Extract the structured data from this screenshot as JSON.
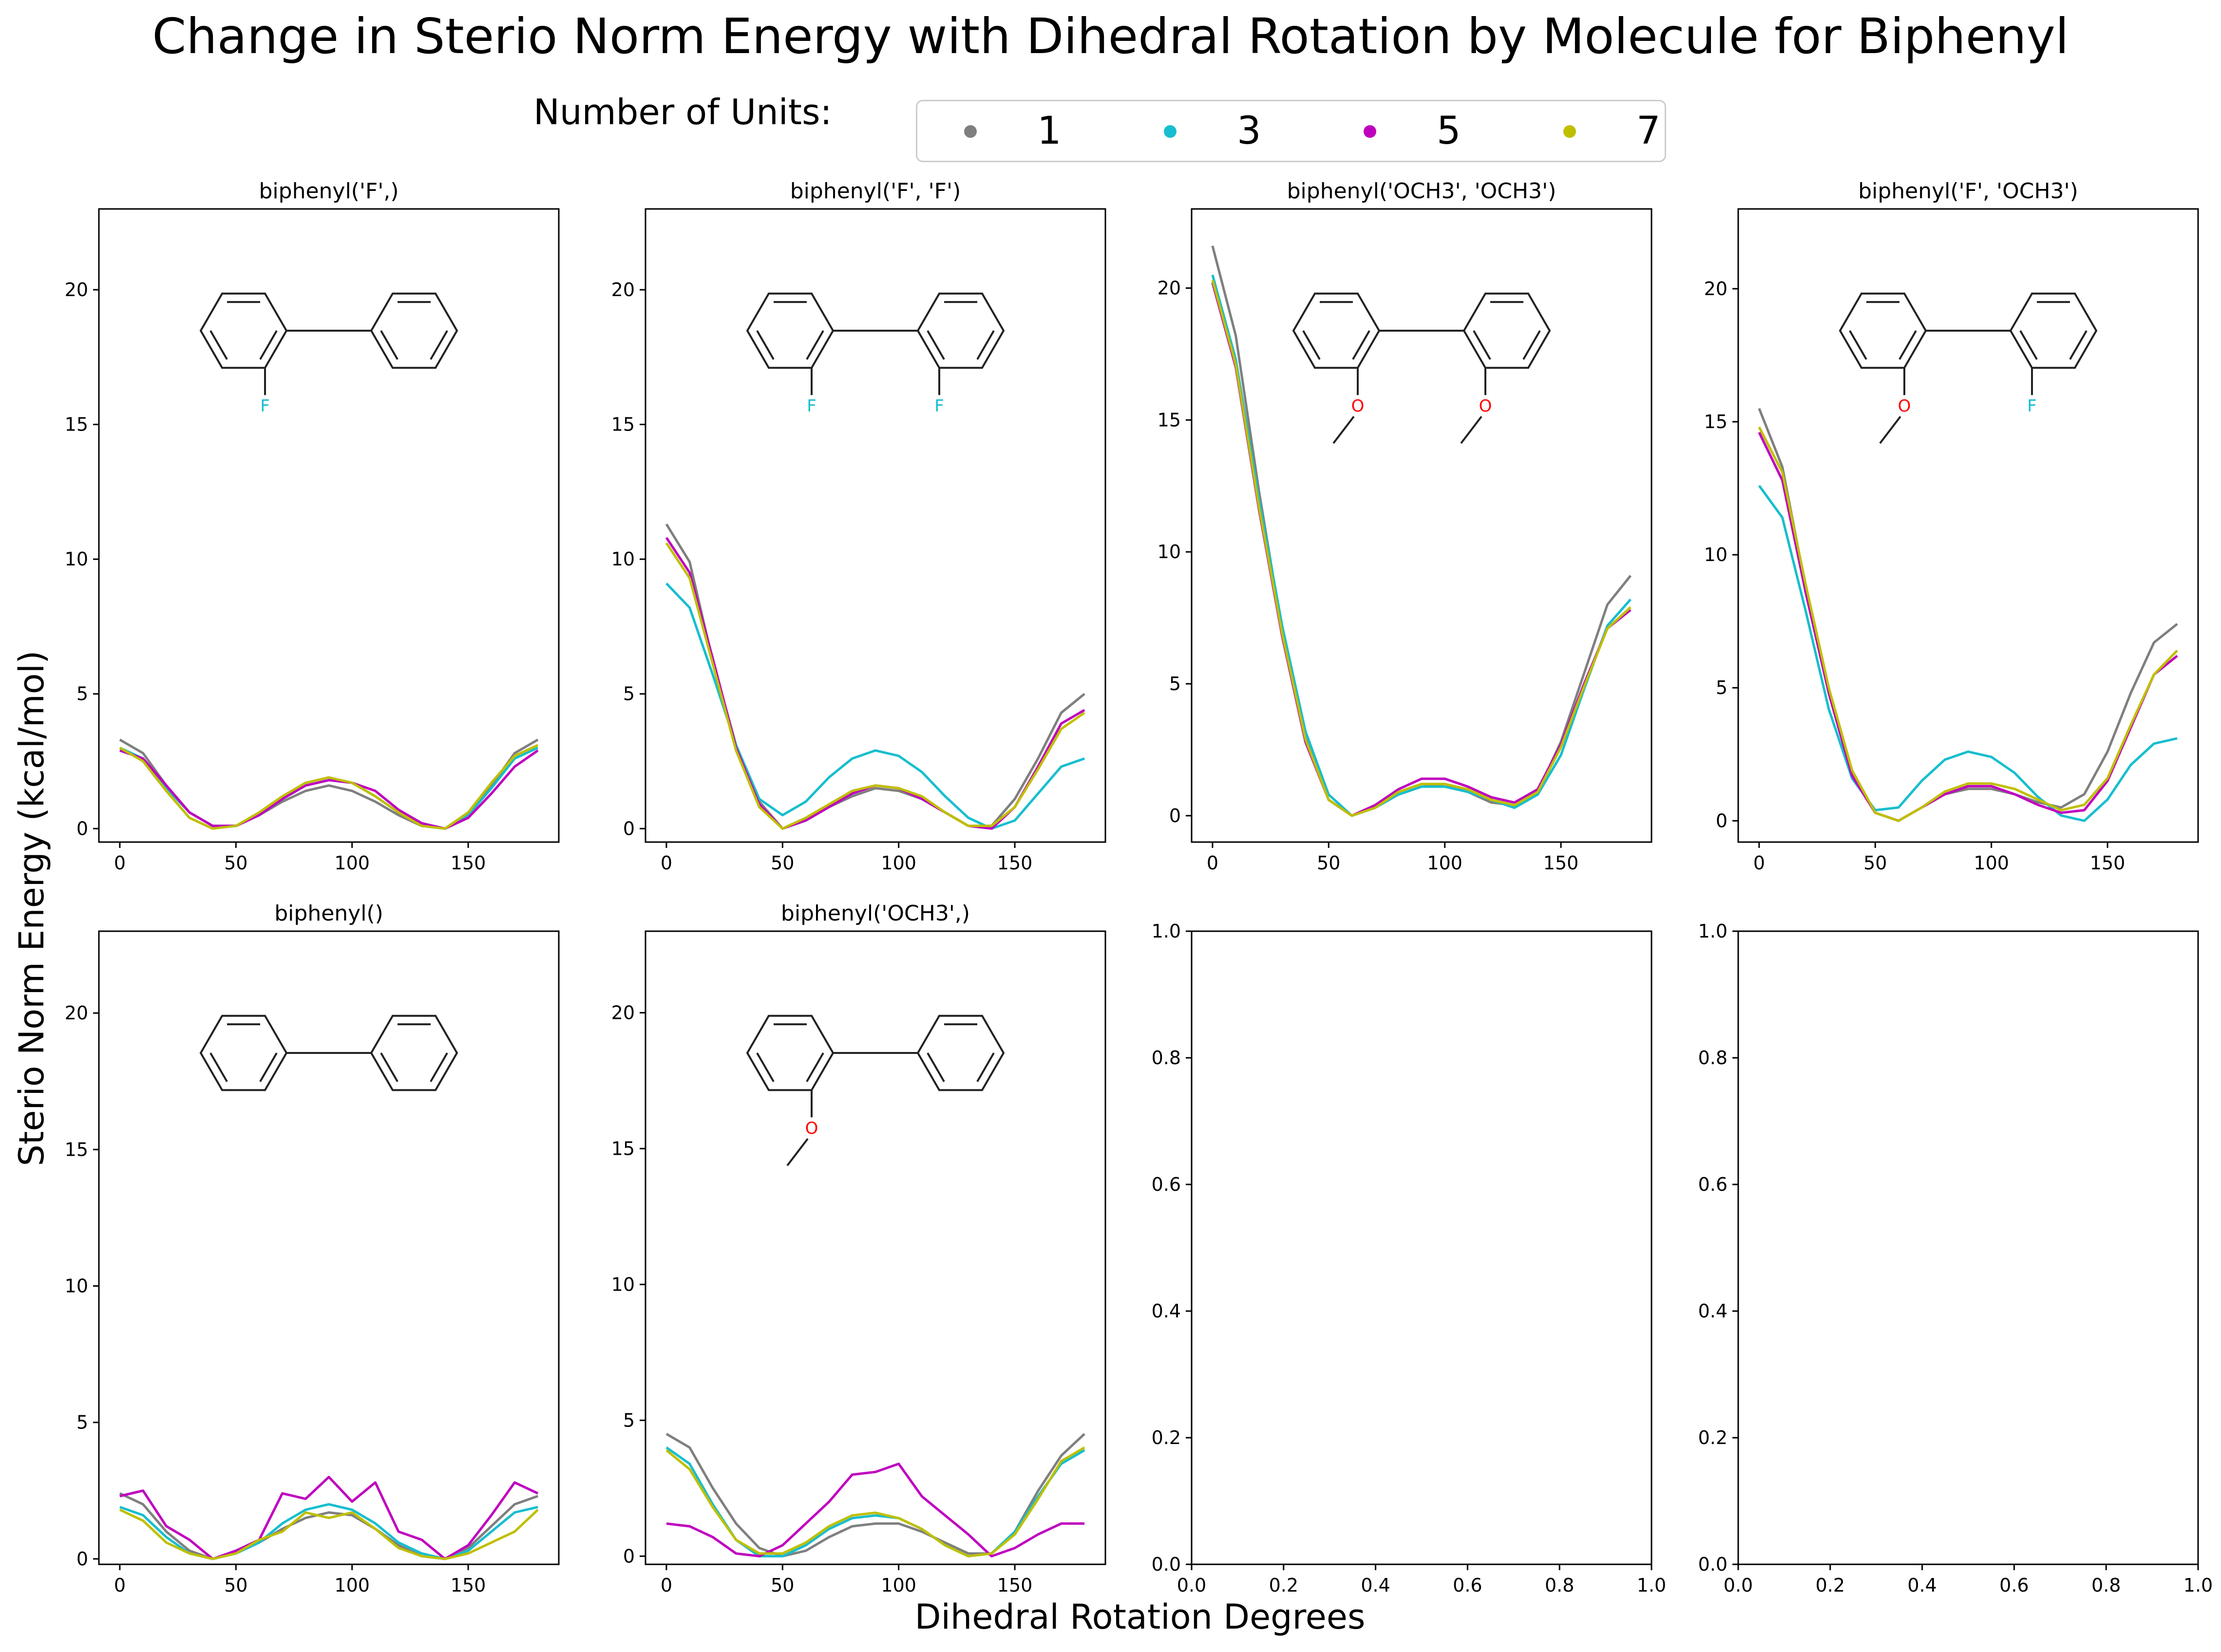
{
  "figure": {
    "title": "Change in Sterio Norm Energy with Dihedral Rotation by Molecule for Biphenyl",
    "xlabel": "Dihedral Rotation Degrees",
    "ylabel": "Sterio Norm Energy (kcal/mol)"
  },
  "legend": {
    "title": "Number of Units:",
    "entries": [
      {
        "label": "1",
        "color": "#7f7f7f"
      },
      {
        "label": "3",
        "color": "#17becf"
      },
      {
        "label": "5",
        "color": "#bf00bf"
      },
      {
        "label": "7",
        "color": "#bfbf00"
      }
    ]
  },
  "chart_data": [
    {
      "type": "line",
      "title": "biphenyl('F',)",
      "molecule_icon": "biphenyl-2-fluoro-structure",
      "x": [
        0,
        10,
        20,
        30,
        40,
        50,
        60,
        70,
        80,
        90,
        100,
        110,
        120,
        130,
        140,
        150,
        160,
        170,
        180
      ],
      "ylim": [
        -0.5,
        23
      ],
      "yticks": [
        0,
        5,
        10,
        15,
        20
      ],
      "xticks": [
        0,
        50,
        100,
        150
      ],
      "series": [
        {
          "name": "1",
          "color": "#7f7f7f",
          "values": [
            3.3,
            2.8,
            1.6,
            0.6,
            0.1,
            0.1,
            0.5,
            1.0,
            1.4,
            1.6,
            1.4,
            1.0,
            0.5,
            0.1,
            0.0,
            0.5,
            1.6,
            2.8,
            3.3
          ]
        },
        {
          "name": "3",
          "color": "#17becf",
          "values": [
            3.0,
            2.6,
            1.5,
            0.6,
            0.1,
            0.1,
            0.5,
            1.1,
            1.6,
            1.8,
            1.7,
            1.2,
            0.6,
            0.1,
            0.0,
            0.5,
            1.5,
            2.6,
            3.0
          ]
        },
        {
          "name": "5",
          "color": "#bf00bf",
          "values": [
            2.9,
            2.6,
            1.6,
            0.6,
            0.1,
            0.1,
            0.5,
            1.1,
            1.6,
            1.8,
            1.7,
            1.4,
            0.7,
            0.2,
            0.0,
            0.4,
            1.3,
            2.3,
            2.9
          ]
        },
        {
          "name": "7",
          "color": "#bfbf00",
          "values": [
            3.0,
            2.5,
            1.4,
            0.4,
            0.0,
            0.1,
            0.6,
            1.2,
            1.7,
            1.9,
            1.7,
            1.2,
            0.6,
            0.1,
            0.0,
            0.6,
            1.7,
            2.7,
            3.1
          ]
        }
      ]
    },
    {
      "type": "line",
      "title": "biphenyl('F', 'F')",
      "molecule_icon": "biphenyl-2-2-difluoro-structure",
      "x": [
        0,
        10,
        20,
        30,
        40,
        50,
        60,
        70,
        80,
        90,
        100,
        110,
        120,
        130,
        140,
        150,
        160,
        170,
        180
      ],
      "ylim": [
        -0.5,
        23
      ],
      "yticks": [
        0,
        5,
        10,
        15,
        20
      ],
      "xticks": [
        0,
        50,
        100,
        150
      ],
      "series": [
        {
          "name": "1",
          "color": "#7f7f7f",
          "values": [
            11.3,
            9.9,
            6.2,
            3.1,
            1.0,
            0.0,
            0.3,
            0.8,
            1.2,
            1.5,
            1.4,
            1.1,
            0.6,
            0.1,
            0.1,
            1.1,
            2.6,
            4.3,
            5.0
          ]
        },
        {
          "name": "3",
          "color": "#17becf",
          "values": [
            9.1,
            8.2,
            5.7,
            3.1,
            1.1,
            0.5,
            1.0,
            1.9,
            2.6,
            2.9,
            2.7,
            2.1,
            1.2,
            0.4,
            0.0,
            0.3,
            1.3,
            2.3,
            2.6
          ]
        },
        {
          "name": "5",
          "color": "#bf00bf",
          "values": [
            10.8,
            9.5,
            6.3,
            3.0,
            0.9,
            0.0,
            0.3,
            0.8,
            1.3,
            1.6,
            1.5,
            1.1,
            0.6,
            0.1,
            0.0,
            0.8,
            2.3,
            3.9,
            4.4
          ]
        },
        {
          "name": "7",
          "color": "#bfbf00",
          "values": [
            10.6,
            9.3,
            6.1,
            2.9,
            0.8,
            0.0,
            0.4,
            0.9,
            1.4,
            1.6,
            1.5,
            1.2,
            0.6,
            0.1,
            0.1,
            0.8,
            2.2,
            3.7,
            4.3
          ]
        }
      ]
    },
    {
      "type": "line",
      "title": "biphenyl('OCH3', 'OCH3')",
      "molecule_icon": "biphenyl-2-2-dimethoxy-structure",
      "x": [
        0,
        10,
        20,
        30,
        40,
        50,
        60,
        70,
        80,
        90,
        100,
        110,
        120,
        130,
        140,
        150,
        160,
        170,
        180
      ],
      "ylim": [
        -1,
        23
      ],
      "yticks": [
        0,
        5,
        10,
        15,
        20
      ],
      "xticks": [
        0,
        50,
        100,
        150
      ],
      "series": [
        {
          "name": "1",
          "color": "#7f7f7f",
          "values": [
            21.6,
            18.2,
            12.3,
            7.0,
            3.0,
            0.6,
            0.0,
            0.3,
            0.8,
            1.1,
            1.2,
            0.9,
            0.5,
            0.4,
            0.9,
            2.8,
            5.4,
            8.0,
            9.1
          ]
        },
        {
          "name": "3",
          "color": "#17becf",
          "values": [
            20.5,
            17.3,
            12.0,
            7.2,
            3.2,
            0.8,
            0.0,
            0.3,
            0.8,
            1.1,
            1.1,
            0.9,
            0.6,
            0.3,
            0.8,
            2.3,
            4.8,
            7.2,
            8.2
          ]
        },
        {
          "name": "5",
          "color": "#bf00bf",
          "values": [
            20.2,
            17.0,
            11.6,
            6.8,
            2.8,
            0.6,
            0.0,
            0.4,
            1.0,
            1.4,
            1.4,
            1.1,
            0.7,
            0.5,
            1.0,
            2.7,
            5.0,
            7.1,
            7.8
          ]
        },
        {
          "name": "7",
          "color": "#bfbf00",
          "values": [
            20.3,
            17.1,
            11.7,
            6.9,
            2.9,
            0.6,
            0.0,
            0.3,
            0.9,
            1.2,
            1.2,
            1.0,
            0.6,
            0.4,
            0.9,
            2.6,
            4.9,
            7.1,
            7.9
          ]
        }
      ]
    },
    {
      "type": "line",
      "title": "biphenyl('F', 'OCH3')",
      "molecule_icon": "biphenyl-2-fluoro-2-methoxy-structure",
      "x": [
        0,
        10,
        20,
        30,
        40,
        50,
        60,
        70,
        80,
        90,
        100,
        110,
        120,
        130,
        140,
        150,
        160,
        170,
        180
      ],
      "ylim": [
        -0.8,
        23
      ],
      "yticks": [
        0,
        5,
        10,
        15,
        20
      ],
      "xticks": [
        0,
        50,
        100,
        150
      ],
      "series": [
        {
          "name": "1",
          "color": "#7f7f7f",
          "values": [
            15.5,
            13.3,
            8.8,
            4.8,
            1.7,
            0.3,
            0.0,
            0.5,
            1.0,
            1.2,
            1.2,
            1.0,
            0.7,
            0.5,
            1.0,
            2.6,
            4.8,
            6.7,
            7.4
          ]
        },
        {
          "name": "3",
          "color": "#17becf",
          "values": [
            12.6,
            11.4,
            7.9,
            4.2,
            1.6,
            0.4,
            0.5,
            1.5,
            2.3,
            2.6,
            2.4,
            1.8,
            0.9,
            0.2,
            0.0,
            0.8,
            2.1,
            2.9,
            3.1
          ]
        },
        {
          "name": "5",
          "color": "#bf00bf",
          "values": [
            14.6,
            12.8,
            8.6,
            4.8,
            1.7,
            0.3,
            0.0,
            0.5,
            1.0,
            1.3,
            1.3,
            1.0,
            0.6,
            0.3,
            0.4,
            1.5,
            3.5,
            5.5,
            6.2
          ]
        },
        {
          "name": "7",
          "color": "#bfbf00",
          "values": [
            14.8,
            13.1,
            8.9,
            5.0,
            1.9,
            0.3,
            0.0,
            0.5,
            1.1,
            1.4,
            1.4,
            1.2,
            0.8,
            0.4,
            0.6,
            1.6,
            3.6,
            5.5,
            6.4
          ]
        }
      ]
    },
    {
      "type": "line",
      "title": "biphenyl()",
      "molecule_icon": "biphenyl-structure",
      "x": [
        0,
        10,
        20,
        30,
        40,
        50,
        60,
        70,
        80,
        90,
        100,
        110,
        120,
        130,
        140,
        150,
        160,
        170,
        180
      ],
      "ylim": [
        -0.2,
        23
      ],
      "yticks": [
        0,
        5,
        10,
        15,
        20
      ],
      "xticks": [
        0,
        50,
        100,
        150
      ],
      "series": [
        {
          "name": "1",
          "color": "#7f7f7f",
          "values": [
            2.4,
            2.0,
            1.0,
            0.3,
            0.0,
            0.2,
            0.6,
            1.1,
            1.5,
            1.7,
            1.6,
            1.1,
            0.5,
            0.1,
            0.0,
            0.4,
            1.2,
            2.0,
            2.3
          ]
        },
        {
          "name": "3",
          "color": "#17becf",
          "values": [
            1.9,
            1.6,
            0.8,
            0.2,
            0.0,
            0.2,
            0.6,
            1.3,
            1.8,
            2.0,
            1.8,
            1.3,
            0.6,
            0.2,
            0.0,
            0.3,
            1.0,
            1.7,
            1.9
          ]
        },
        {
          "name": "5",
          "color": "#bf00bf",
          "values": [
            2.3,
            2.5,
            1.2,
            0.7,
            0.0,
            0.3,
            0.7,
            2.4,
            2.2,
            3.0,
            2.1,
            2.8,
            1.0,
            0.7,
            0.0,
            0.5,
            1.6,
            2.8,
            2.4
          ]
        },
        {
          "name": "7",
          "color": "#bfbf00",
          "values": [
            1.8,
            1.4,
            0.6,
            0.2,
            0.0,
            0.2,
            0.7,
            1.0,
            1.7,
            1.5,
            1.7,
            1.1,
            0.4,
            0.1,
            0.0,
            0.2,
            0.6,
            1.0,
            1.8
          ]
        }
      ]
    },
    {
      "type": "line",
      "title": "biphenyl('OCH3',)",
      "molecule_icon": "biphenyl-2-methoxy-structure",
      "x": [
        0,
        10,
        20,
        30,
        40,
        50,
        60,
        70,
        80,
        90,
        100,
        110,
        120,
        130,
        140,
        150,
        160,
        170,
        180
      ],
      "ylim": [
        -0.3,
        23
      ],
      "yticks": [
        0,
        5,
        10,
        15,
        20
      ],
      "xticks": [
        0,
        50,
        100,
        150
      ],
      "series": [
        {
          "name": "1",
          "color": "#7f7f7f",
          "values": [
            4.5,
            4.0,
            2.5,
            1.2,
            0.3,
            0.0,
            0.2,
            0.7,
            1.1,
            1.2,
            1.2,
            0.9,
            0.5,
            0.1,
            0.1,
            0.9,
            2.4,
            3.7,
            4.5
          ]
        },
        {
          "name": "3",
          "color": "#17becf",
          "values": [
            4.0,
            3.4,
            1.9,
            0.6,
            0.0,
            0.0,
            0.4,
            1.0,
            1.4,
            1.5,
            1.4,
            1.0,
            0.4,
            0.0,
            0.1,
            0.9,
            2.2,
            3.4,
            3.9
          ]
        },
        {
          "name": "5",
          "color": "#bf00bf",
          "values": [
            1.2,
            1.1,
            0.7,
            0.1,
            0.0,
            0.4,
            1.2,
            2.0,
            3.0,
            3.1,
            3.4,
            2.2,
            1.5,
            0.8,
            0.0,
            0.3,
            0.8,
            1.2,
            1.2
          ]
        },
        {
          "name": "7",
          "color": "#bfbf00",
          "values": [
            3.9,
            3.2,
            1.8,
            0.6,
            0.1,
            0.1,
            0.5,
            1.1,
            1.5,
            1.6,
            1.4,
            1.0,
            0.4,
            0.0,
            0.1,
            0.8,
            2.1,
            3.5,
            4.0
          ]
        }
      ]
    },
    {
      "type": "line",
      "title": "",
      "empty": true,
      "xlim": [
        0,
        1
      ],
      "ylim": [
        0,
        1
      ],
      "xticks": [
        "0.0",
        "0.2",
        "0.4",
        "0.6",
        "0.8",
        "1.0"
      ],
      "yticks": [
        "0.0",
        "0.2",
        "0.4",
        "0.6",
        "0.8",
        "1.0"
      ],
      "series": []
    },
    {
      "type": "line",
      "title": "",
      "empty": true,
      "xlim": [
        0,
        1
      ],
      "ylim": [
        0,
        1
      ],
      "xticks": [
        "0.0",
        "0.2",
        "0.4",
        "0.6",
        "0.8",
        "1.0"
      ],
      "yticks": [
        "0.0",
        "0.2",
        "0.4",
        "0.6",
        "0.8",
        "1.0"
      ],
      "series": []
    }
  ]
}
